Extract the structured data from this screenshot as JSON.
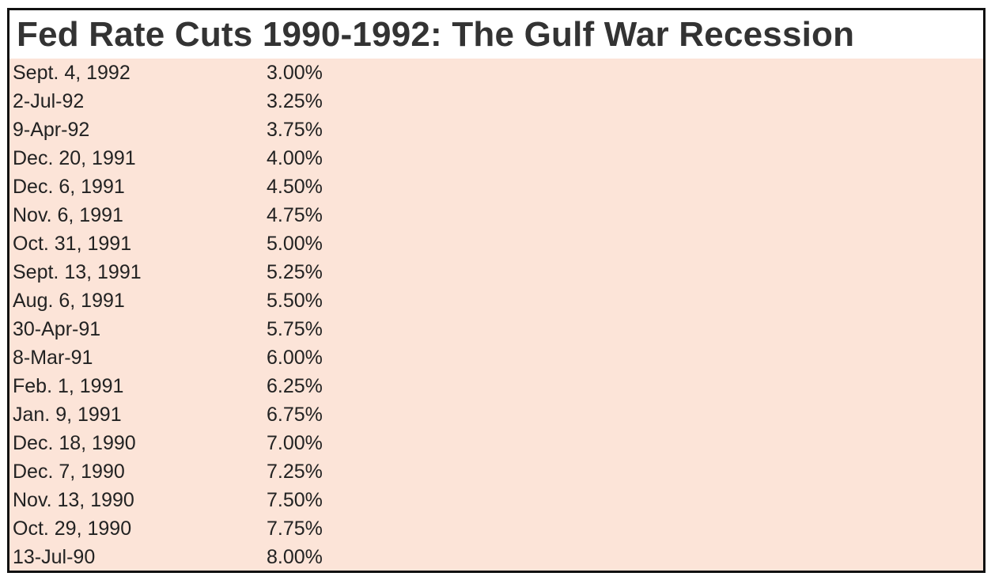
{
  "title": "Fed Rate Cuts 1990-1992: The Gulf War Recession",
  "colors": {
    "background": "#fce4d8",
    "title_background": "#ffffff",
    "border": "#111111",
    "text": "#222222"
  },
  "rows": [
    {
      "date": "Sept. 4, 1992",
      "rate": "3.00%"
    },
    {
      "date": "2-Jul-92",
      "rate": "3.25%"
    },
    {
      "date": "9-Apr-92",
      "rate": "3.75%"
    },
    {
      "date": "Dec. 20, 1991",
      "rate": "4.00%"
    },
    {
      "date": "Dec. 6, 1991",
      "rate": "4.50%"
    },
    {
      "date": "Nov. 6, 1991",
      "rate": "4.75%"
    },
    {
      "date": "Oct. 31, 1991",
      "rate": "5.00%"
    },
    {
      "date": "Sept. 13, 1991",
      "rate": "5.25%"
    },
    {
      "date": "Aug. 6, 1991",
      "rate": "5.50%"
    },
    {
      "date": "30-Apr-91",
      "rate": "5.75%"
    },
    {
      "date": "8-Mar-91",
      "rate": "6.00%"
    },
    {
      "date": "Feb. 1, 1991",
      "rate": "6.25%"
    },
    {
      "date": "Jan. 9, 1991",
      "rate": "6.75%"
    },
    {
      "date": "Dec. 18, 1990",
      "rate": "7.00%"
    },
    {
      "date": "Dec. 7, 1990",
      "rate": "7.25%"
    },
    {
      "date": "Nov. 13, 1990",
      "rate": "7.50%"
    },
    {
      "date": "Oct. 29, 1990",
      "rate": "7.75%"
    },
    {
      "date": "13-Jul-90",
      "rate": "8.00%"
    }
  ]
}
